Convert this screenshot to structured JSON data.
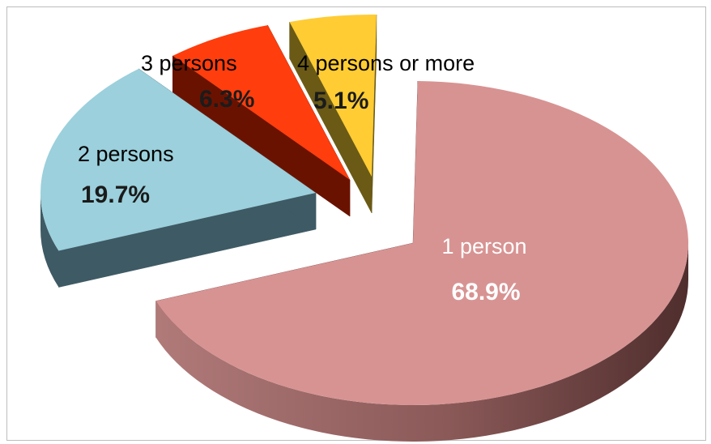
{
  "chart_data": {
    "type": "pie",
    "title": "",
    "categories": [
      "1 person",
      "2 persons",
      "3 persons",
      "4 persons or more"
    ],
    "values": [
      68.9,
      19.7,
      6.3,
      5.1
    ],
    "value_labels": [
      "68.9%",
      "19.7%",
      "6.3%",
      "5.1%"
    ],
    "style": "3d-exploded",
    "colors": {
      "top": [
        "#d79392",
        "#9bd0dc",
        "#ff3d0d",
        "#ffcc33"
      ],
      "side": [
        "#6e4140",
        "#3e5a64",
        "#6a1200",
        "#6a5a16"
      ]
    },
    "label_colors": [
      "#ffffff",
      "#000000",
      "#000000",
      "#000000"
    ],
    "pct_colors": [
      "#ffffff",
      "#1b1b1b",
      "#1b1b1b",
      "#1b1b1b"
    ]
  }
}
